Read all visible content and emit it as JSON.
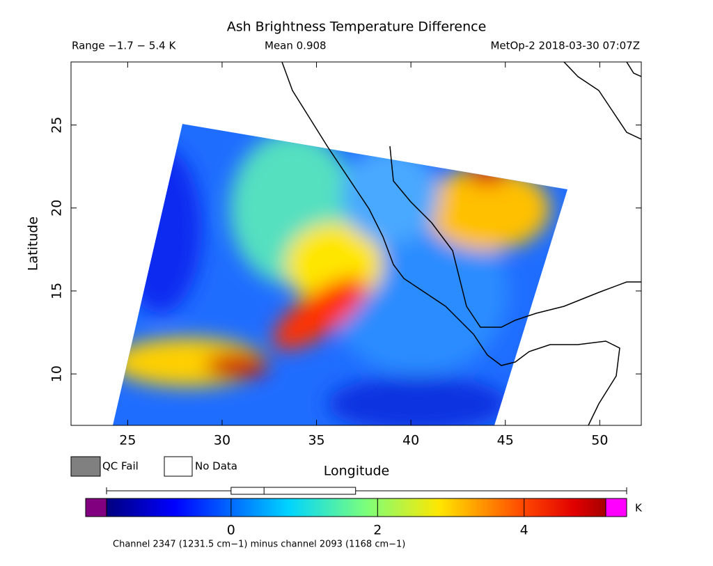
{
  "header": {
    "title": "Ash Brightness Temperature Difference",
    "range": "Range −1.7 − 5.4 K",
    "mean": "Mean 0.908",
    "satellite": "MetOp-2 2018-03-30 07:07Z"
  },
  "map": {
    "xlabel": "Longitude",
    "ylabel": "Latitude",
    "xlim": [
      22,
      52.2
    ],
    "ylim": [
      6.9,
      28.8
    ],
    "xticks": [
      25,
      30,
      35,
      40,
      45,
      50
    ],
    "yticks": [
      10,
      15,
      20,
      25
    ]
  },
  "legend": {
    "qc_fail": "QC Fail",
    "no_data": "No Data",
    "qc_color": "#808080"
  },
  "colorbar": {
    "lim": [
      -1.7,
      5.4
    ],
    "ticks": [
      0,
      2,
      4
    ],
    "unit": "K",
    "under_color": "#800080",
    "over_color": "#ff00ff",
    "boxplot": {
      "min": -1.7,
      "q1": 0,
      "median": 0.45,
      "q3": 1.7,
      "max": 5.4
    },
    "caption": "Channel 2347 (1231.5 cm−1) minus channel 2093 (1168 cm−1)"
  }
}
